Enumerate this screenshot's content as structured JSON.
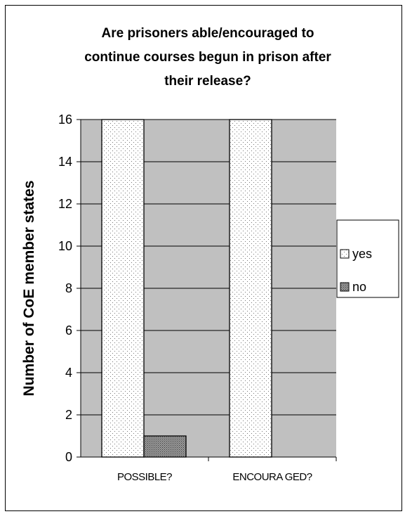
{
  "chart_data": {
    "type": "bar",
    "title_lines": [
      "Are prisoners able/encouraged to",
      "continue courses begun in prison after",
      "their release?"
    ],
    "xlabel": "",
    "ylabel": "Number of CoE member states",
    "categories": [
      "POSSIBLE?",
      "ENCOURA GED?"
    ],
    "series": [
      {
        "name": "yes",
        "values": [
          16,
          16
        ],
        "fill": "dotted-white"
      },
      {
        "name": "no",
        "values": [
          1,
          0
        ],
        "fill": "crosshatch-gray"
      }
    ],
    "ylim": [
      0,
      16
    ],
    "yticks": [
      0,
      2,
      4,
      6,
      8,
      10,
      12,
      14,
      16
    ],
    "grid": true,
    "legend_position": "right",
    "colors": {
      "plot_background": "#c0c0c0",
      "yes_fill": "#ffffff",
      "yes_dots": "#555555",
      "no_fill": "#9a9a9a",
      "grid": "#000000"
    }
  }
}
